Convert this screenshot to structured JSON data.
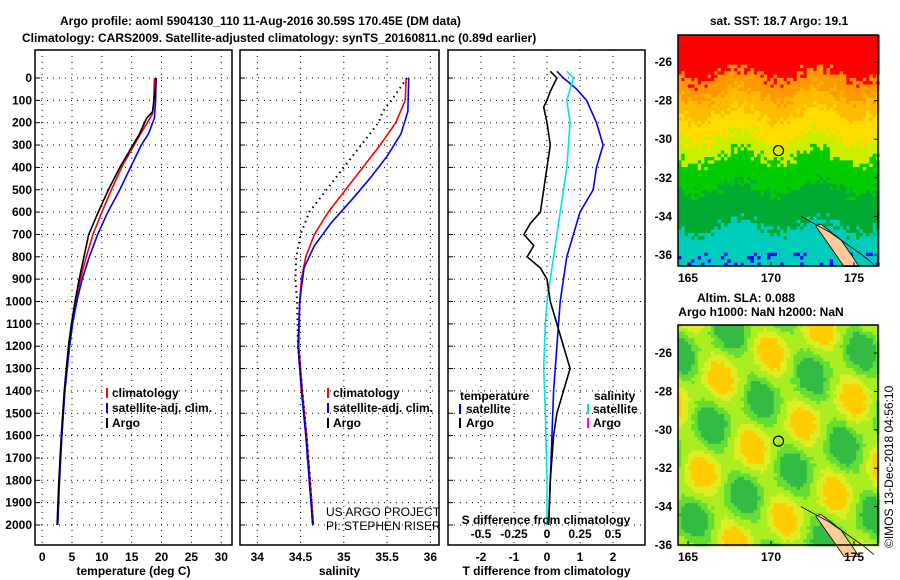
{
  "chart_data": {
    "type": "line",
    "title": "Argo profile: aoml 5904130_110 11-Aug-2016 30.59S 170.45E (DM data)",
    "subtitle": "Climatology: CARS2009. Satellite-adjusted climatology: synTS_20160811.nc (0.89d earlier)",
    "depth_ticks": [
      0,
      100,
      200,
      300,
      400,
      500,
      600,
      700,
      800,
      900,
      1000,
      1100,
      1200,
      1300,
      1400,
      1500,
      1600,
      1700,
      1800,
      1900,
      2000
    ],
    "panels": [
      {
        "xlabel": "temperature (deg C)",
        "xticks": [
          0,
          5,
          10,
          15,
          20,
          25,
          30
        ],
        "xlim": [
          -1.2,
          31.8
        ],
        "legend": [
          "climatology",
          "satellite-adj. clim.",
          "Argo"
        ],
        "series": [
          {
            "name": "climatology",
            "color": "#ff0000",
            "points": [
              [
                0,
                18.8
              ],
              [
                100,
                18.7
              ],
              [
                160,
                18.5
              ],
              [
                200,
                17.6
              ],
              [
                300,
                15.4
              ],
              [
                400,
                13.3
              ],
              [
                500,
                11.6
              ],
              [
                600,
                10.0
              ],
              [
                700,
                8.5
              ],
              [
                800,
                7.4
              ],
              [
                900,
                6.4
              ],
              [
                1000,
                5.6
              ],
              [
                1100,
                5.0
              ],
              [
                1200,
                4.5
              ],
              [
                1400,
                3.8
              ],
              [
                1600,
                3.3
              ],
              [
                1800,
                2.9
              ],
              [
                2000,
                2.6
              ]
            ]
          },
          {
            "name": "satellite-adj. clim.",
            "color": "#0000ff",
            "points": [
              [
                0,
                19.1
              ],
              [
                100,
                19.0
              ],
              [
                180,
                18.8
              ],
              [
                250,
                17.8
              ],
              [
                300,
                16.6
              ],
              [
                400,
                14.8
              ],
              [
                500,
                13.0
              ],
              [
                600,
                11.0
              ],
              [
                700,
                9.3
              ],
              [
                800,
                7.9
              ],
              [
                900,
                6.7
              ],
              [
                1000,
                5.8
              ],
              [
                1100,
                5.1
              ],
              [
                1200,
                4.6
              ],
              [
                1400,
                3.8
              ],
              [
                1600,
                3.3
              ],
              [
                1800,
                2.9
              ],
              [
                2000,
                2.6
              ]
            ]
          },
          {
            "name": "Argo",
            "color": "#000000",
            "points": [
              [
                0,
                19.1
              ],
              [
                60,
                18.9
              ],
              [
                150,
                18.5
              ],
              [
                180,
                17.5
              ],
              [
                250,
                16.3
              ],
              [
                300,
                15.2
              ],
              [
                350,
                14.1
              ],
              [
                400,
                13.0
              ],
              [
                500,
                11.1
              ],
              [
                600,
                9.4
              ],
              [
                700,
                7.8
              ],
              [
                800,
                7.0
              ],
              [
                900,
                6.2
              ],
              [
                1000,
                5.5
              ],
              [
                1100,
                4.9
              ],
              [
                1200,
                4.4
              ],
              [
                1400,
                3.7
              ],
              [
                1600,
                3.2
              ],
              [
                1800,
                2.8
              ],
              [
                2000,
                2.5
              ]
            ]
          }
        ]
      },
      {
        "xlabel": "salinity",
        "xticks": [
          34,
          34.5,
          35,
          35.5,
          36
        ],
        "xlim": [
          33.8,
          36.1
        ],
        "legend": [
          "climatology",
          "satellite-adj. clim.",
          "Argo"
        ],
        "credit": [
          "US ARGO PROJECT",
          "PI: STEPHEN RISER"
        ],
        "series": [
          {
            "name": "climatology",
            "color": "#ff0000",
            "points": [
              [
                0,
                35.72
              ],
              [
                100,
                35.71
              ],
              [
                200,
                35.6
              ],
              [
                300,
                35.42
              ],
              [
                400,
                35.22
              ],
              [
                500,
                35.02
              ],
              [
                600,
                34.82
              ],
              [
                700,
                34.66
              ],
              [
                800,
                34.56
              ],
              [
                900,
                34.51
              ],
              [
                1000,
                34.49
              ],
              [
                1200,
                34.48
              ],
              [
                1400,
                34.52
              ],
              [
                1600,
                34.57
              ],
              [
                1800,
                34.61
              ],
              [
                2000,
                34.65
              ]
            ]
          },
          {
            "name": "satellite-adj. clim.",
            "color": "#0000ff",
            "points": [
              [
                0,
                35.75
              ],
              [
                150,
                35.74
              ],
              [
                250,
                35.66
              ],
              [
                350,
                35.5
              ],
              [
                450,
                35.3
              ],
              [
                550,
                35.08
              ],
              [
                650,
                34.85
              ],
              [
                750,
                34.66
              ],
              [
                850,
                34.54
              ],
              [
                1000,
                34.49
              ],
              [
                1200,
                34.47
              ],
              [
                1400,
                34.51
              ],
              [
                1600,
                34.56
              ],
              [
                1800,
                34.6
              ],
              [
                2000,
                34.64
              ]
            ]
          },
          {
            "name": "Argo",
            "color": "#000000",
            "points": [
              [
                0,
                35.73
              ],
              [
                100,
                35.55
              ],
              [
                150,
                35.45
              ],
              [
                200,
                35.4
              ],
              [
                300,
                35.2
              ],
              [
                400,
                35.0
              ],
              [
                500,
                34.8
              ],
              [
                600,
                34.6
              ],
              [
                700,
                34.5
              ],
              [
                800,
                34.45
              ],
              [
                900,
                34.44
              ],
              [
                1000,
                34.46
              ],
              [
                1200,
                34.47
              ],
              [
                1400,
                34.52
              ],
              [
                1600,
                34.57
              ],
              [
                1800,
                34.61
              ],
              [
                2000,
                34.64
              ]
            ]
          }
        ]
      },
      {
        "xlabel": "T difference from climatology",
        "xticks": [
          -2,
          -1,
          0,
          1,
          2
        ],
        "xlim": [
          -3,
          2.97
        ],
        "s_label": "S difference from climatology",
        "s_ticks": [
          "-0.5",
          "-0.25",
          "0",
          "0.25",
          "0.5"
        ],
        "s_tick_values": [
          -0.5,
          -0.25,
          0,
          0.25,
          0.5
        ],
        "legend_temperature": {
          "title": "temperature",
          "items": [
            "satellite",
            "Argo"
          ]
        },
        "legend_salinity": {
          "title": "salinity",
          "items": [
            "satellite",
            "Argo"
          ]
        },
        "series": [
          {
            "name": "T satellite",
            "color": "#0000ff",
            "points": [
              [
                -30,
                0.3
              ],
              [
                0,
                0.5
              ],
              [
                50,
                0.9
              ],
              [
                100,
                1.2
              ],
              [
                200,
                1.5
              ],
              [
                300,
                1.7
              ],
              [
                350,
                1.6
              ],
              [
                400,
                1.5
              ],
              [
                500,
                1.4
              ],
              [
                600,
                1.0
              ],
              [
                700,
                0.8
              ],
              [
                800,
                0.6
              ],
              [
                900,
                0.5
              ],
              [
                1000,
                0.4
              ],
              [
                1200,
                0.3
              ],
              [
                1400,
                0.2
              ],
              [
                1600,
                0.15
              ],
              [
                1800,
                0.1
              ],
              [
                2000,
                0.05
              ]
            ]
          },
          {
            "name": "S satellite",
            "color": "#00e5e5",
            "points": [
              [
                -30,
                0.6
              ],
              [
                0,
                0.8
              ],
              [
                100,
                0.6
              ],
              [
                200,
                0.7
              ],
              [
                400,
                0.6
              ],
              [
                500,
                0.5
              ],
              [
                700,
                0.3
              ],
              [
                900,
                0.1
              ],
              [
                1000,
                0.0
              ],
              [
                1100,
                -0.05
              ],
              [
                1300,
                -0.1
              ],
              [
                1500,
                -0.05
              ],
              [
                1800,
                0.0
              ],
              [
                2000,
                0.0
              ]
            ]
          },
          {
            "name": "T Argo",
            "color": "#000000",
            "points": [
              [
                -30,
                0.1
              ],
              [
                0,
                0.3
              ],
              [
                60,
                0.1
              ],
              [
                100,
                0.0
              ],
              [
                130,
                -0.1
              ],
              [
                200,
                0.0
              ],
              [
                300,
                0.1
              ],
              [
                400,
                0.0
              ],
              [
                500,
                -0.1
              ],
              [
                600,
                -0.2
              ],
              [
                650,
                -0.5
              ],
              [
                700,
                -0.7
              ],
              [
                750,
                -0.4
              ],
              [
                800,
                -0.6
              ],
              [
                850,
                -0.2
              ],
              [
                900,
                0.0
              ],
              [
                1000,
                0.1
              ],
              [
                1100,
                0.3
              ],
              [
                1200,
                0.5
              ],
              [
                1300,
                0.7
              ],
              [
                1400,
                0.5
              ],
              [
                1500,
                0.3
              ],
              [
                1600,
                0.2
              ],
              [
                1800,
                0.1
              ],
              [
                2000,
                0.05
              ]
            ]
          }
        ]
      }
    ],
    "maps": [
      {
        "title": "sat. SST: 18.7 Argo: 19.1",
        "xticks": [
          165,
          170,
          175
        ],
        "yticks": [
          -26,
          -28,
          -30,
          -32,
          -34,
          -36
        ],
        "marker": [
          170.45,
          -30.59
        ],
        "palette": [
          "#ff0000",
          "#ff9900",
          "#ffbb00",
          "#ffdd00",
          "#ccee00",
          "#00cc00",
          "#00aa33",
          "#00ccbb",
          "#0000ff"
        ]
      },
      {
        "title": "Altim. SLA: 0.088",
        "subtitle": "Argo h1000: NaN h2000: NaN",
        "xticks": [
          165,
          170,
          175
        ],
        "yticks": [
          -26,
          -28,
          -30,
          -32,
          -34,
          -36
        ],
        "marker": [
          170.45,
          -30.59
        ],
        "palette": [
          "#ffcc00",
          "#ddee22",
          "#aaee22",
          "#66dd33",
          "#33bb44"
        ]
      }
    ],
    "watermark": "©IMOS 13-Dec-2018 04:56:10"
  }
}
